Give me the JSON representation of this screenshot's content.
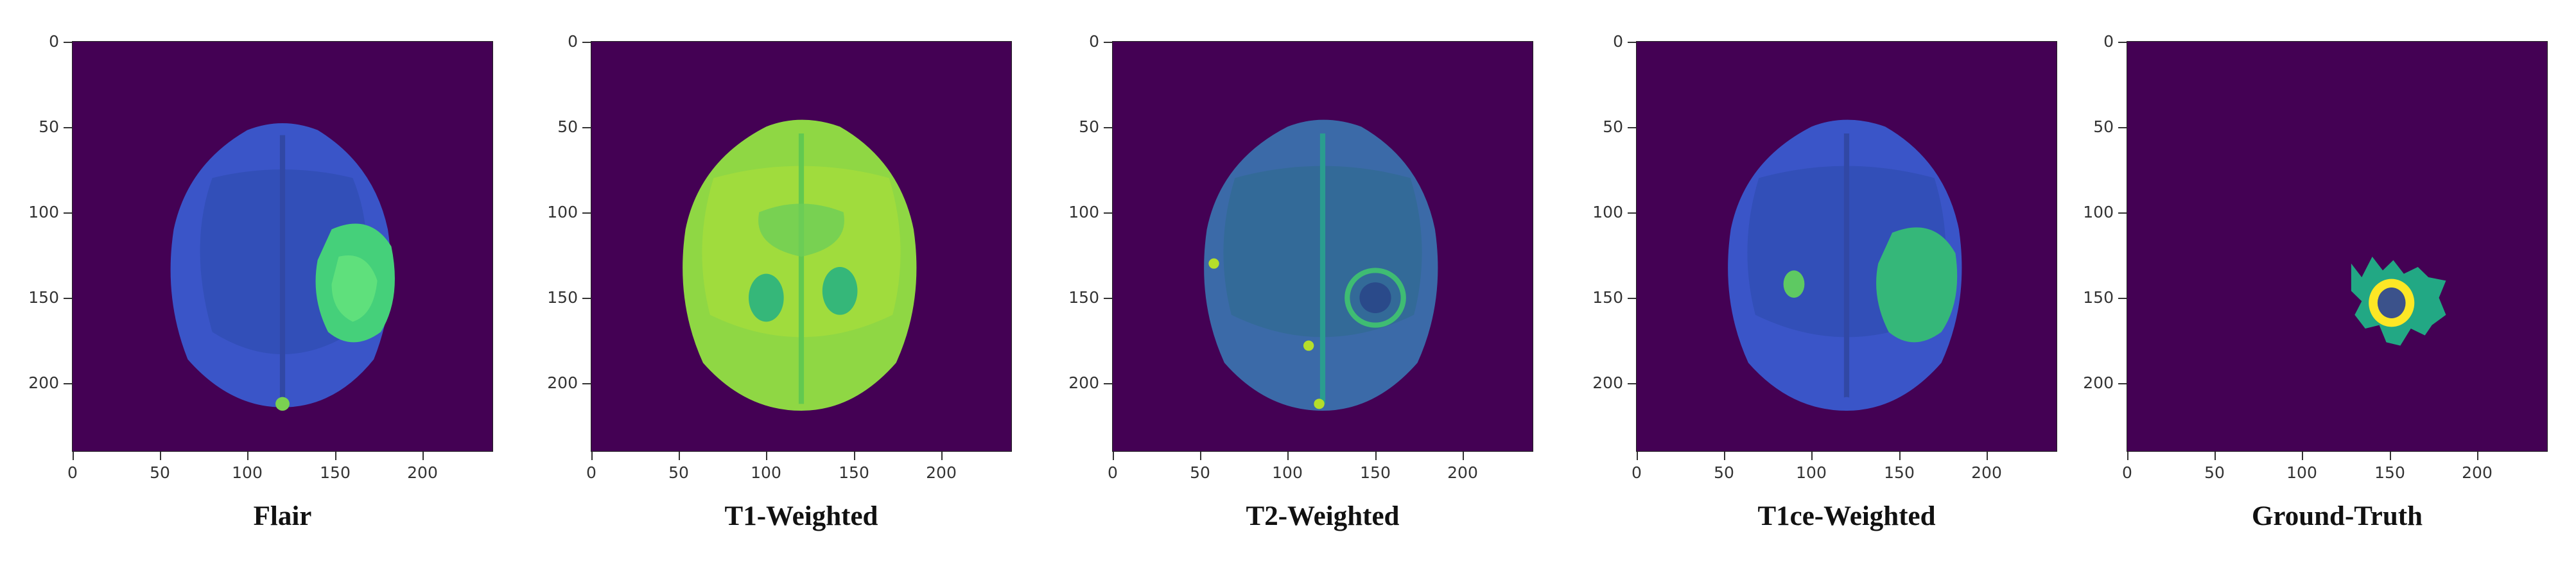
{
  "panels": [
    {
      "id": "flair",
      "caption": "Flair",
      "icon": "mri-flair-brain-slice"
    },
    {
      "id": "t1",
      "caption": "T1-Weighted",
      "icon": "mri-t1-brain-slice"
    },
    {
      "id": "t2",
      "caption": "T2-Weighted",
      "icon": "mri-t2-brain-slice"
    },
    {
      "id": "t1ce",
      "caption": "T1ce-Weighted",
      "icon": "mri-t1ce-brain-slice"
    },
    {
      "id": "gt",
      "caption": "Ground-Truth",
      "icon": "tumor-segmentation-mask"
    }
  ],
  "axis": {
    "x_ticks": [
      "0",
      "50",
      "100",
      "150",
      "200"
    ],
    "y_ticks": [
      "0",
      "50",
      "100",
      "150",
      "200"
    ],
    "range": [
      0,
      240
    ]
  },
  "colors": {
    "background": "#440154",
    "flair_brain": "#3a55c8",
    "flair_tumor": "#45d07a",
    "t1_brain": "#8fd744",
    "t2_brain": "#3b6aa8",
    "t1ce_brain": "#3a55c8",
    "gt_edema": "#22a884",
    "gt_enhancing": "#fde725",
    "gt_core": "#3b528b"
  }
}
